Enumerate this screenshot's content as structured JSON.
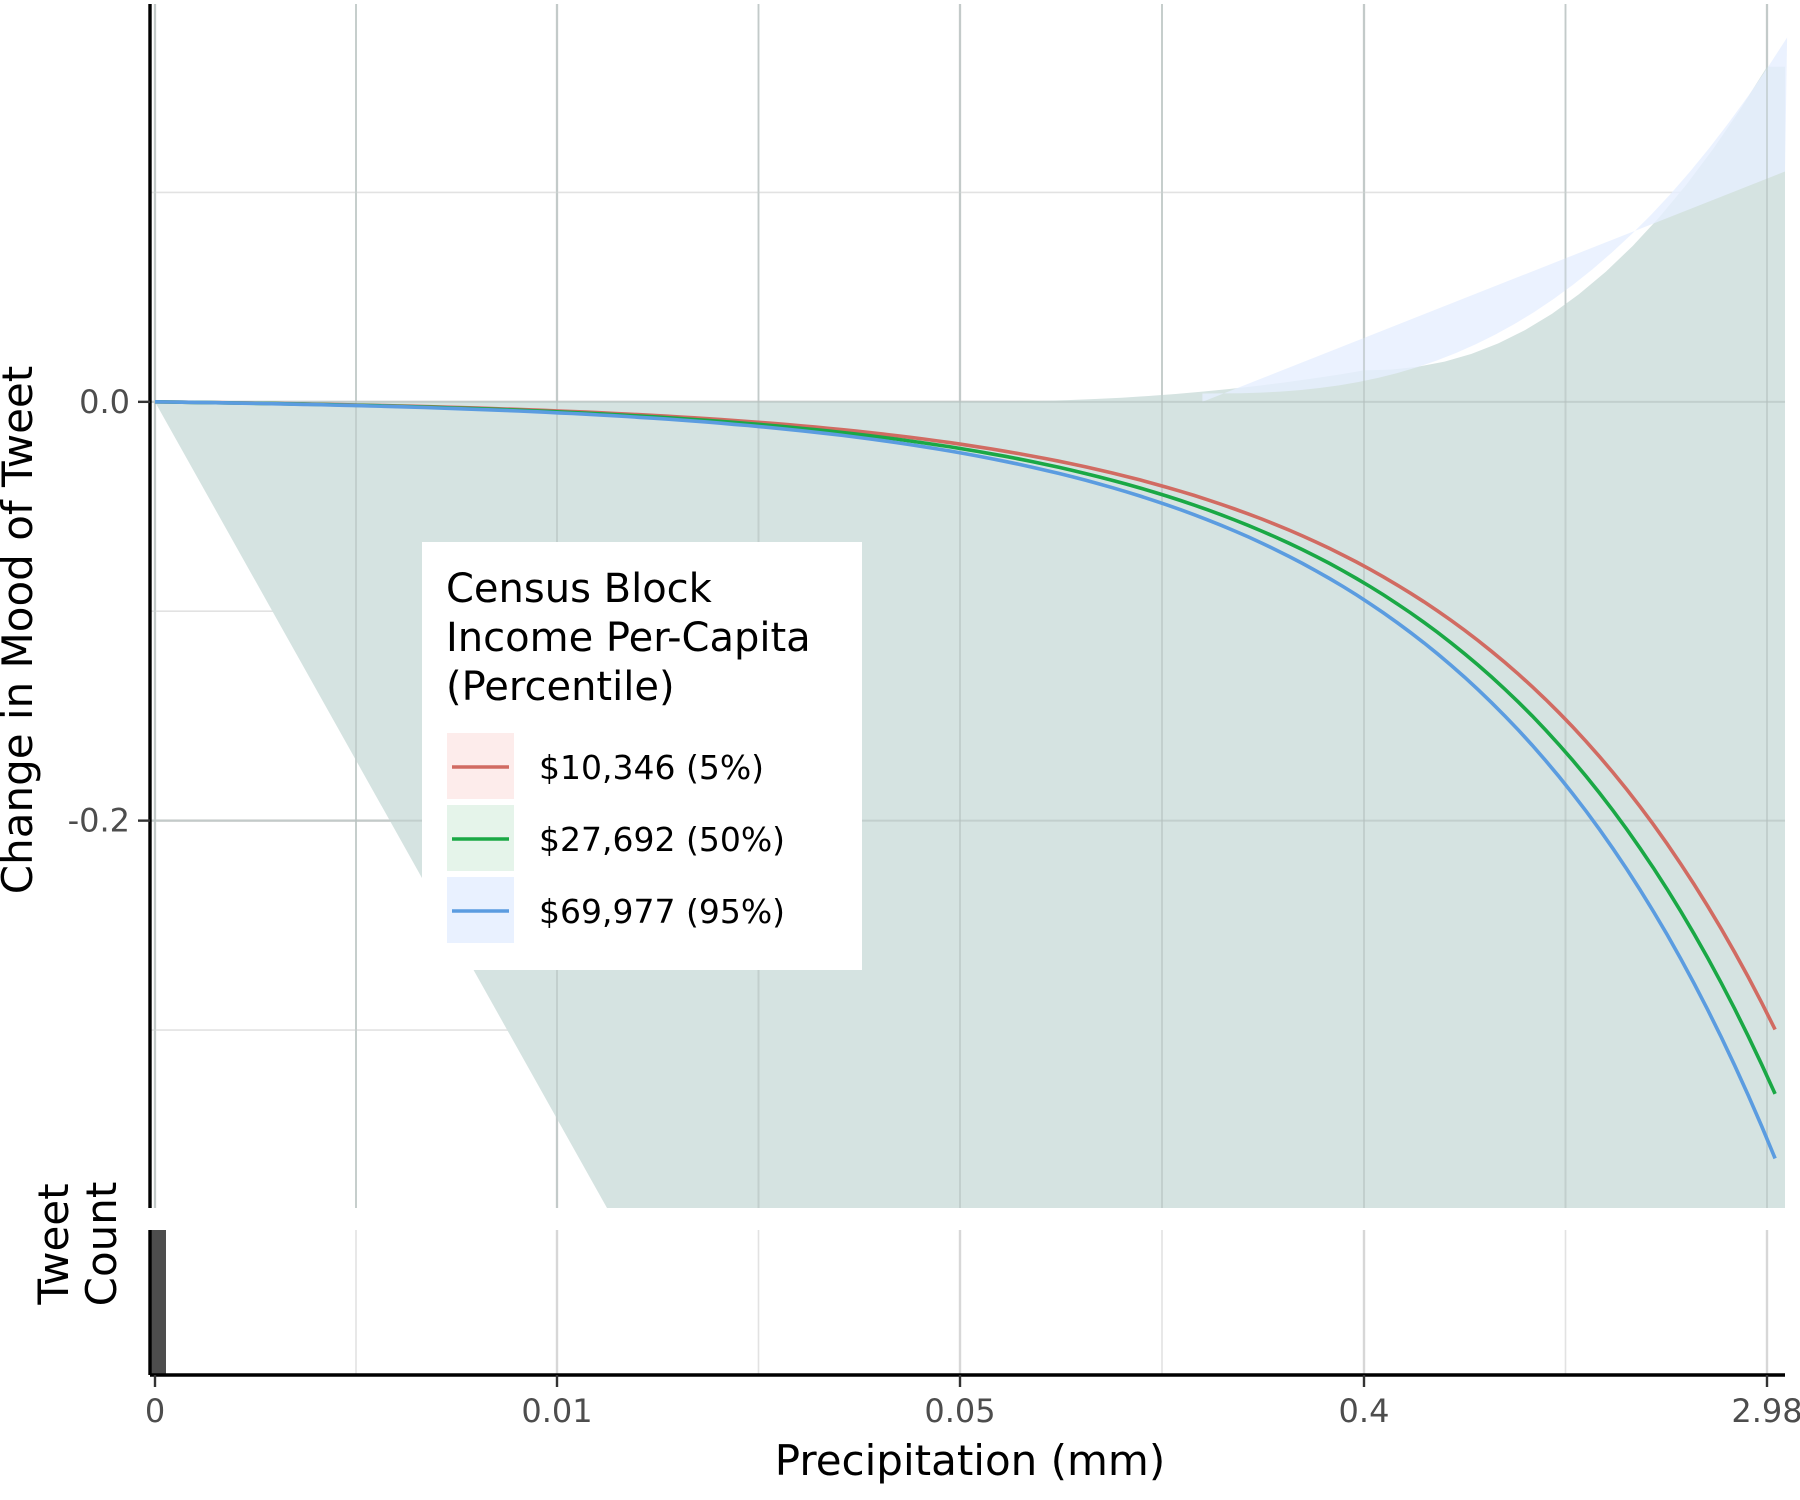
{
  "chart_data": [
    {
      "type": "line",
      "panel": "main",
      "title": "",
      "ylabel": "Change in Mood of Tweet",
      "xlabel": "Precipitation (mm)",
      "x_scale": "transformed",
      "x_ticks": [
        "0",
        "0.01",
        "0.05",
        "0.4",
        "2.98"
      ],
      "y_ticks": [
        "0.0",
        "-0.2"
      ],
      "ylim": [
        -0.385,
        0.19
      ],
      "grid": true,
      "legend": {
        "title_lines": [
          "Census Block",
          "Income Per-Capita",
          "(Percentile)"
        ],
        "placement": "center-left"
      },
      "x": [
        "0",
        "0.01",
        "0.05",
        "0.4",
        "2.98"
      ],
      "series": [
        {
          "name": "$10,346 (5%)",
          "color": "#d16b62",
          "values": [
            0.0,
            -0.002,
            -0.008,
            -0.04,
            -0.292
          ]
        },
        {
          "name": "$27,692 (50%)",
          "color": "#1aa845",
          "values": [
            0.0,
            -0.002,
            -0.008,
            -0.044,
            -0.322
          ]
        },
        {
          "name": "$69,977 (95%)",
          "color": "#5b9ce0",
          "values": [
            0.0,
            -0.002,
            -0.008,
            -0.05,
            -0.352
          ]
        }
      ],
      "confidence_band": {
        "upper": [
          0.0,
          0.0,
          0.0,
          0.015,
          0.16
        ],
        "lower": [
          0.0,
          -0.385,
          -0.385,
          -0.385,
          -0.385
        ]
      }
    },
    {
      "type": "bar",
      "panel": "marginal",
      "ylabel": "Tweet Count",
      "xlabel": "Precipitation (mm)",
      "categories": [
        "0"
      ],
      "values": [
        1
      ],
      "color": "#4d4d4d"
    }
  ]
}
